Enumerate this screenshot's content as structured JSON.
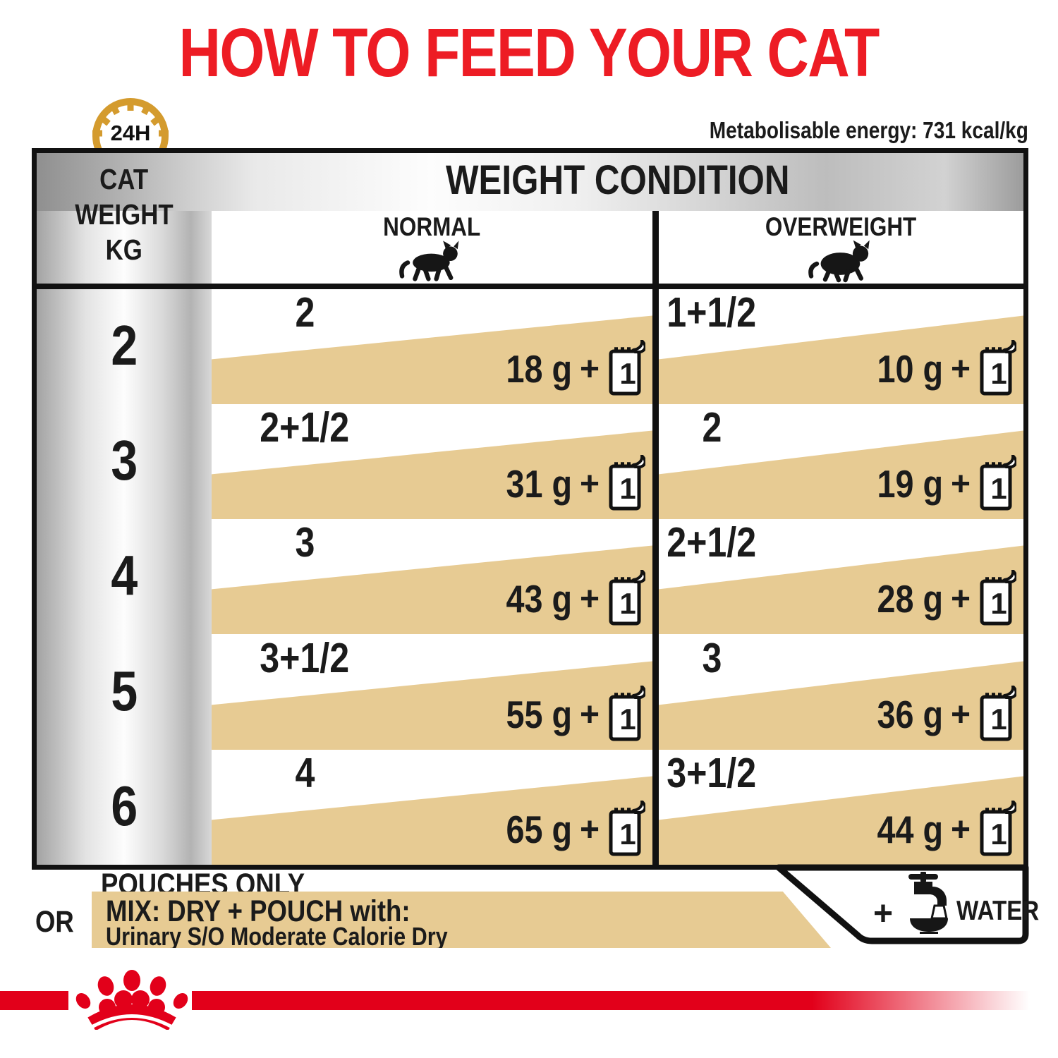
{
  "header": {
    "title": "HOW TO FEED YOUR CAT",
    "clock_label": "24H",
    "energy_note": "Metabolisable energy: 731 kcal/kg"
  },
  "table": {
    "weight_header_lines": [
      "CAT",
      "WEIGHT",
      "KG"
    ],
    "condition_header": "WEIGHT CONDITION",
    "columns": [
      {
        "label": "NORMAL",
        "icon": "normal-cat"
      },
      {
        "label": "OVERWEIGHT",
        "icon": "overweight-cat"
      }
    ],
    "plus": "+",
    "rows": [
      {
        "weight": "2",
        "normal": {
          "pouches_only": "2",
          "mix": {
            "dry": "18 g",
            "pouches": "1"
          }
        },
        "overweight": {
          "pouches_only": "1+1/2",
          "mix": {
            "dry": "10 g",
            "pouches": "1"
          }
        }
      },
      {
        "weight": "3",
        "normal": {
          "pouches_only": "2+1/2",
          "mix": {
            "dry": "31 g",
            "pouches": "1"
          }
        },
        "overweight": {
          "pouches_only": "2",
          "mix": {
            "dry": "19 g",
            "pouches": "1"
          }
        }
      },
      {
        "weight": "4",
        "normal": {
          "pouches_only": "3",
          "mix": {
            "dry": "43 g",
            "pouches": "1"
          }
        },
        "overweight": {
          "pouches_only": "2+1/2",
          "mix": {
            "dry": "28 g",
            "pouches": "1"
          }
        }
      },
      {
        "weight": "5",
        "normal": {
          "pouches_only": "3+1/2",
          "mix": {
            "dry": "55 g",
            "pouches": "1"
          }
        },
        "overweight": {
          "pouches_only": "3",
          "mix": {
            "dry": "36 g",
            "pouches": "1"
          }
        }
      },
      {
        "weight": "6",
        "normal": {
          "pouches_only": "4",
          "mix": {
            "dry": "65 g",
            "pouches": "1"
          }
        },
        "overweight": {
          "pouches_only": "3+1/2",
          "mix": {
            "dry": "44 g",
            "pouches": "1"
          }
        }
      }
    ]
  },
  "legend": {
    "pouches_only": "POUCHES ONLY",
    "or": "OR",
    "mix_title": "MIX: DRY + POUCH with:",
    "mix_product": "Urinary S/O Moderate Calorie Dry",
    "water_plus": "+",
    "water_label": "WATER"
  },
  "colors": {
    "title_red": "#ED1C24",
    "brand_red": "#E2001A",
    "ration_tan": "#E7CB93",
    "clock_gold": "#D49B2E"
  },
  "chart_data": {
    "type": "table",
    "title": "HOW TO FEED YOUR CAT",
    "metabolisable_energy_kcal_per_kg": 731,
    "feeding_period": "24H",
    "row_header": "CAT WEIGHT KG",
    "column_groups": [
      "NORMAL",
      "OVERWEIGHT"
    ],
    "columns": [
      "cat_weight_kg",
      "normal_pouches_only",
      "normal_mix_dry_g",
      "normal_mix_pouches",
      "overweight_pouches_only",
      "overweight_mix_dry_g",
      "overweight_mix_pouches"
    ],
    "rows": [
      [
        2,
        "2",
        18,
        1,
        "1+1/2",
        10,
        1
      ],
      [
        3,
        "2+1/2",
        31,
        1,
        "2",
        19,
        1
      ],
      [
        4,
        "3",
        43,
        1,
        "2+1/2",
        28,
        1
      ],
      [
        5,
        "3+1/2",
        55,
        1,
        "3",
        36,
        1
      ],
      [
        6,
        "4",
        65,
        1,
        "3+1/2",
        44,
        1
      ]
    ],
    "notes": [
      "POUCHES ONLY",
      "OR MIX: DRY + POUCH with: Urinary S/O Moderate Calorie Dry",
      "+ WATER"
    ]
  }
}
